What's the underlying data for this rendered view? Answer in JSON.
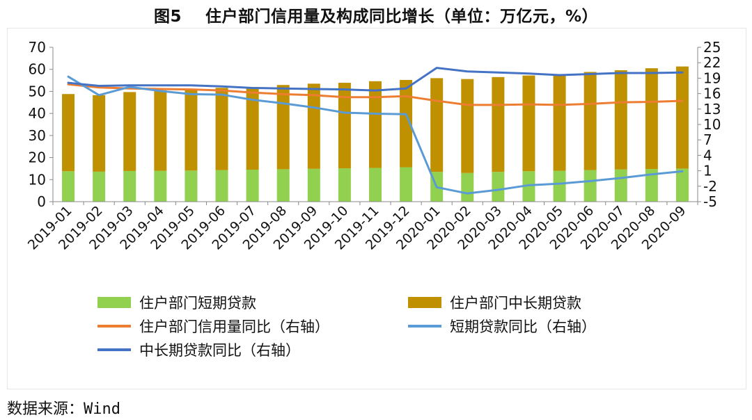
{
  "title": "图5    住户部门信用量及构成同比增长（单位：万亿元，%）",
  "source": "数据来源：Wind",
  "colors": {
    "short_bar": "#92d050",
    "long_bar": "#bf9000",
    "credit_line": "#ed7d31",
    "short_line": "#5b9bd5",
    "long_line": "#4472c4"
  },
  "chart_data": {
    "type": "bar",
    "stacked": true,
    "categories": [
      "2019-01",
      "2019-02",
      "2019-03",
      "2019-04",
      "2019-05",
      "2019-06",
      "2019-07",
      "2019-08",
      "2019-09",
      "2019-10",
      "2019-11",
      "2019-12",
      "2020-01",
      "2020-02",
      "2020-03",
      "2020-04",
      "2020-05",
      "2020-06",
      "2020-07",
      "2020-08",
      "2020-09"
    ],
    "left_axis": {
      "min": 0,
      "max": 70,
      "ticks": [
        0,
        10,
        20,
        30,
        40,
        50,
        60,
        70
      ]
    },
    "right_axis": {
      "min": -5,
      "max": 25,
      "ticks": [
        -5,
        -2,
        1,
        4,
        7,
        10,
        13,
        16,
        19,
        22,
        25
      ]
    },
    "grid": false,
    "legend_position": "bottom",
    "series": [
      {
        "name": "住户部门短期贷款",
        "type": "bar",
        "axis": "left",
        "color_key": "short_bar",
        "values": [
          13.8,
          13.6,
          13.9,
          14.0,
          14.1,
          14.3,
          14.5,
          14.7,
          14.9,
          15.1,
          15.3,
          15.6,
          13.5,
          13.0,
          13.5,
          13.8,
          14.0,
          14.3,
          14.6,
          14.8,
          15.0
        ]
      },
      {
        "name": "住户部门中长期贷款",
        "type": "bar",
        "axis": "left",
        "color_key": "long_bar",
        "values": [
          35.0,
          34.7,
          35.8,
          36.5,
          36.9,
          37.3,
          37.5,
          38.2,
          38.6,
          38.8,
          39.3,
          39.6,
          42.5,
          42.6,
          43.0,
          43.4,
          43.8,
          44.5,
          45.0,
          45.7,
          46.3
        ]
      },
      {
        "name": "住户部门信用量同比（右轴）",
        "type": "line",
        "axis": "right",
        "color_key": "credit_line",
        "values": [
          17.8,
          17.2,
          17.0,
          16.9,
          16.8,
          16.6,
          16.2,
          15.9,
          15.7,
          15.3,
          15.3,
          15.5,
          14.6,
          13.8,
          13.8,
          13.9,
          13.8,
          14.0,
          14.3,
          14.4,
          14.6
        ]
      },
      {
        "name": "短期贷款同比（右轴）",
        "type": "line",
        "axis": "right",
        "color_key": "short_line",
        "values": [
          19.3,
          15.7,
          17.3,
          16.5,
          15.9,
          15.8,
          14.8,
          14.1,
          13.3,
          12.3,
          12.1,
          12.0,
          -2.2,
          -3.4,
          -2.7,
          -1.8,
          -1.5,
          -1.0,
          -0.4,
          0.3,
          0.9
        ]
      },
      {
        "name": "中长期贷款同比（右轴）",
        "type": "line",
        "axis": "right",
        "color_key": "long_line",
        "values": [
          18.1,
          17.5,
          17.6,
          17.6,
          17.6,
          17.4,
          17.1,
          17.0,
          16.9,
          16.8,
          16.6,
          17.0,
          21.0,
          20.3,
          20.1,
          19.9,
          19.6,
          19.8,
          20.0,
          20.0,
          20.1
        ]
      }
    ]
  }
}
